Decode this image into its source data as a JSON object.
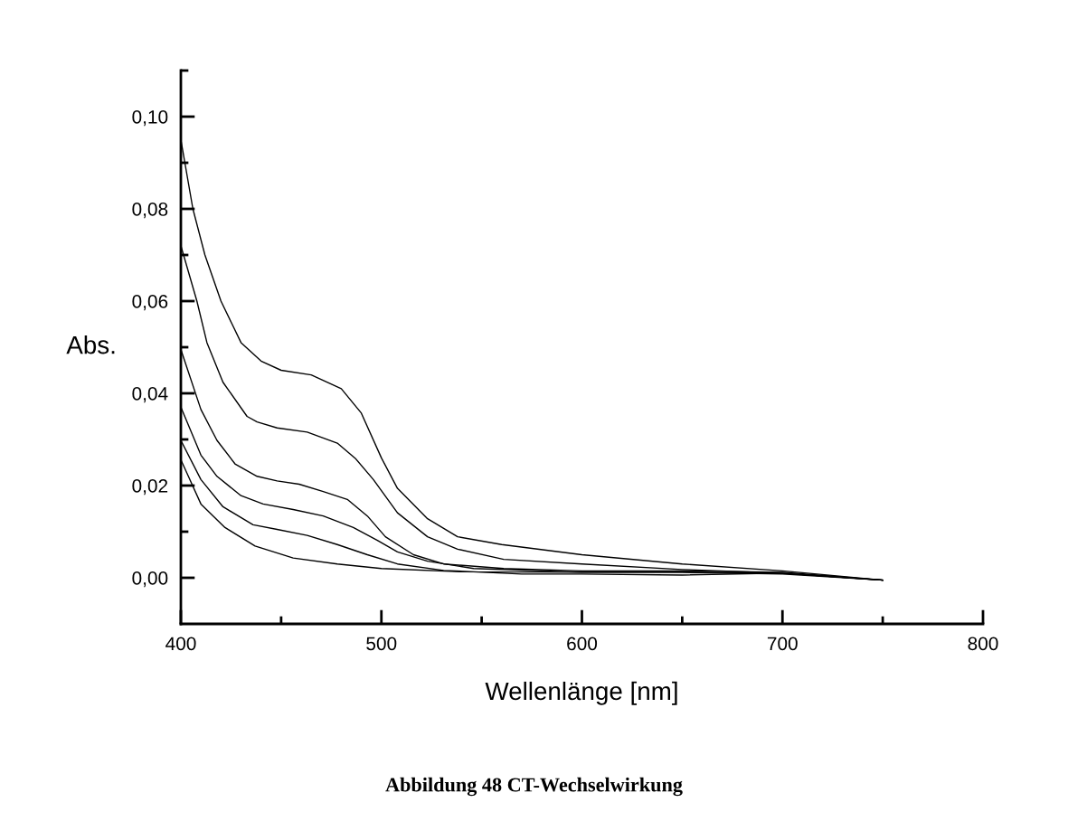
{
  "chart_data": {
    "type": "line",
    "xlabel": "Wellenlänge [nm]",
    "ylabel": "Abs.",
    "annotations": [
      "Abbildung 48 CT-Wechselwirkung"
    ],
    "xlim": [
      400,
      800
    ],
    "ylim": [
      -0.01,
      0.11
    ],
    "xticks": [
      400,
      {
        "value": 450,
        "label": null
      },
      500,
      {
        "value": 550,
        "label": null
      },
      600,
      {
        "value": 650,
        "label": null
      },
      700,
      {
        "value": 750,
        "label": null
      },
      800
    ],
    "yticks": [
      {
        "value": 0.0,
        "label": "0,00"
      },
      {
        "value": 0.01,
        "label": null
      },
      {
        "value": 0.02,
        "label": "0,02"
      },
      {
        "value": 0.03,
        "label": null
      },
      {
        "value": 0.04,
        "label": "0,04"
      },
      {
        "value": 0.05,
        "label": null
      },
      {
        "value": 0.06,
        "label": "0,06"
      },
      {
        "value": 0.07,
        "label": null
      },
      {
        "value": 0.08,
        "label": "0,08"
      },
      {
        "value": 0.09,
        "label": null
      },
      {
        "value": 0.1,
        "label": "0,10"
      },
      {
        "value": 0.11,
        "label": null
      }
    ],
    "grid": false,
    "legend": false,
    "marker": "none",
    "line_style": "solid",
    "series": [
      {
        "color": "#000000",
        "x": [
          400,
          406,
          412,
          420,
          430,
          440,
          450,
          465,
          480,
          490,
          500,
          508,
          523,
          538,
          560,
          600,
          650,
          700,
          750
        ],
        "values": [
          0.095,
          0.08,
          0.07,
          0.06,
          0.051,
          0.047,
          0.045,
          0.044,
          0.041,
          0.0357,
          0.026,
          0.0194,
          0.0128,
          0.0089,
          0.0072,
          0.005,
          0.003,
          0.0015,
          -0.0005
        ]
      },
      {
        "color": "#000000",
        "x": [
          400,
          408,
          413,
          421,
          433,
          438,
          448,
          463,
          478,
          487,
          496,
          508,
          523,
          538,
          561,
          600,
          650,
          700,
          750
        ],
        "values": [
          0.072,
          0.06,
          0.051,
          0.0424,
          0.035,
          0.0338,
          0.0325,
          0.0316,
          0.0292,
          0.0259,
          0.0213,
          0.0141,
          0.0089,
          0.0062,
          0.004,
          0.003,
          0.0018,
          0.001,
          -0.0005
        ]
      },
      {
        "color": "#000000",
        "x": [
          400,
          410,
          418,
          427,
          438,
          448,
          459,
          471,
          483,
          493,
          502,
          516,
          531,
          561,
          600,
          650,
          700,
          750
        ],
        "values": [
          0.0495,
          0.0365,
          0.0298,
          0.0247,
          0.022,
          0.021,
          0.0203,
          0.0187,
          0.017,
          0.0134,
          0.0089,
          0.005,
          0.003,
          0.002,
          0.0015,
          0.0015,
          0.0012,
          -0.0005
        ]
      },
      {
        "color": "#000000",
        "x": [
          400,
          410,
          418,
          430,
          441,
          456,
          471,
          486,
          498,
          508,
          523,
          546,
          600,
          650,
          700,
          750
        ],
        "values": [
          0.037,
          0.0266,
          0.022,
          0.0178,
          0.016,
          0.0148,
          0.0134,
          0.0109,
          0.0081,
          0.0056,
          0.0036,
          0.002,
          0.0012,
          0.0012,
          0.001,
          -0.0005
        ]
      },
      {
        "color": "#000000",
        "x": [
          400,
          410,
          421,
          436,
          448,
          463,
          478,
          493,
          508,
          531,
          570,
          600,
          650,
          700,
          750
        ],
        "values": [
          0.0298,
          0.0213,
          0.0154,
          0.0115,
          0.0105,
          0.0092,
          0.0072,
          0.005,
          0.003,
          0.0016,
          0.0008,
          0.0008,
          0.0006,
          0.001,
          -0.0005
        ]
      },
      {
        "color": "#000000",
        "x": [
          400,
          410,
          422,
          437,
          456,
          478,
          500,
          540,
          600,
          650,
          700,
          750
        ],
        "values": [
          0.0256,
          0.016,
          0.0109,
          0.0069,
          0.0043,
          0.003,
          0.002,
          0.0013,
          0.0012,
          0.0012,
          0.0008,
          -0.0005
        ]
      }
    ]
  }
}
